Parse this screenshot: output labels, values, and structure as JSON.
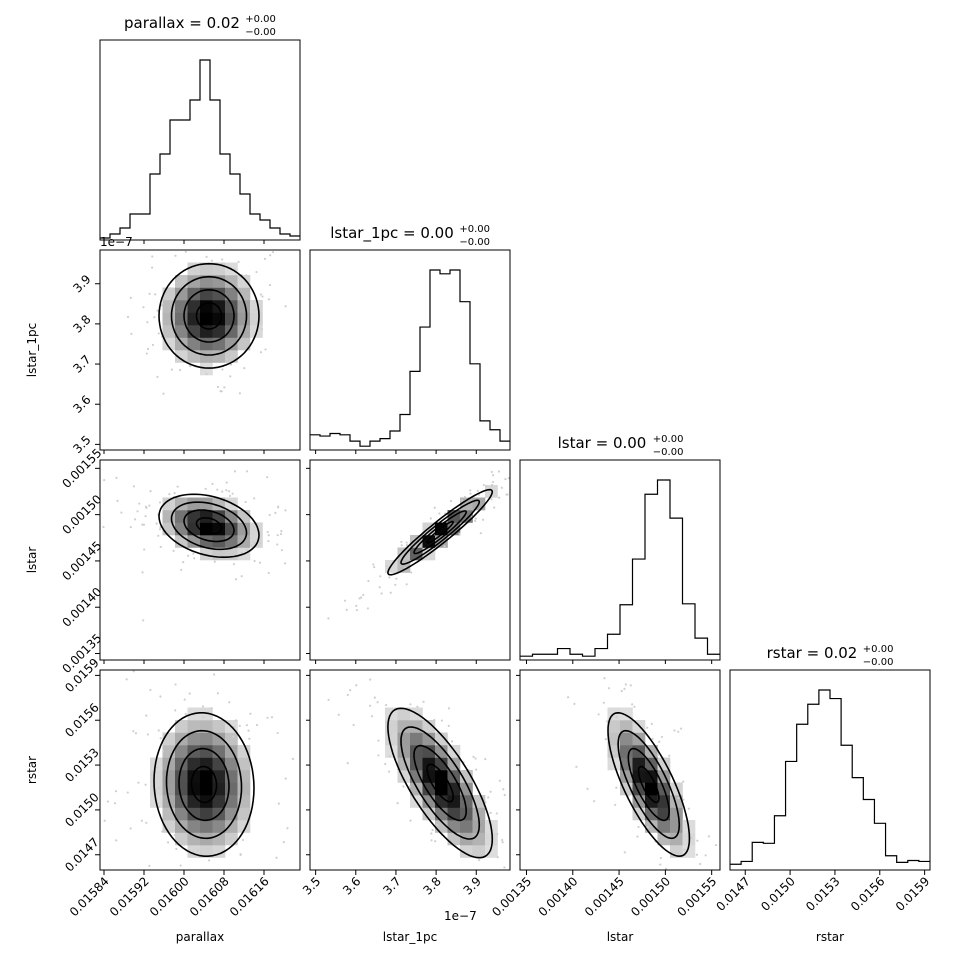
{
  "chart_data": {
    "type": "corner",
    "params": [
      "parallax",
      "lstar_1pc",
      "lstar",
      "rstar"
    ],
    "titles": [
      {
        "text": "parallax = 0.02",
        "sup": "+0.00",
        "sub": "−0.00"
      },
      {
        "text": "lstar_1pc = 0.00",
        "sup": "+0.00",
        "sub": "−0.00"
      },
      {
        "text": "lstar = 0.00",
        "sup": "+0.00",
        "sub": "−0.00"
      },
      {
        "text": "rstar = 0.02",
        "sup": "+0.00",
        "sub": "−0.00"
      }
    ],
    "ranges": [
      [
        0.015832,
        0.016232
      ],
      [
        3.486e-07,
        3.984e-07
      ],
      [
        0.001343,
        0.001559
      ],
      [
        0.014598,
        0.015936
      ]
    ],
    "ticks": {
      "parallax": {
        "values": [
          0.01584,
          0.01592,
          0.016,
          0.01608,
          0.01616
        ],
        "labels": [
          "0.01584",
          "0.01592",
          "0.01600",
          "0.01608",
          "0.01616"
        ]
      },
      "lstar_1pc": {
        "values": [
          3.5e-07,
          3.6e-07,
          3.7e-07,
          3.8e-07,
          3.9e-07
        ],
        "labels": [
          "3.5",
          "3.6",
          "3.7",
          "3.8",
          "3.9"
        ],
        "offset": "1e−7"
      },
      "lstar": {
        "values": [
          0.00135,
          0.0014,
          0.00145,
          0.0015,
          0.00155
        ],
        "labels": [
          "0.00135",
          "0.00140",
          "0.00145",
          "0.00150",
          "0.00155"
        ]
      },
      "rstar": {
        "values": [
          0.0147,
          0.015,
          0.0153,
          0.0156,
          0.0159
        ],
        "labels": [
          "0.0147",
          "0.0150",
          "0.0153",
          "0.0156",
          "0.0159"
        ]
      }
    },
    "histograms": [
      {
        "counts": [
          1,
          3,
          6,
          13,
          13,
          33,
          43,
          60,
          60,
          70,
          90,
          70,
          43,
          33,
          23,
          13,
          10,
          6,
          3,
          2
        ]
      },
      {
        "counts": [
          12,
          11,
          13,
          12,
          7,
          3,
          7,
          9,
          15,
          28,
          62,
          97,
          142,
          139,
          142,
          117,
          68,
          23,
          16,
          7
        ]
      },
      {
        "counts": [
          4,
          6,
          6,
          12,
          6,
          4,
          12,
          27,
          58,
          106,
          174,
          189,
          149,
          59,
          23,
          6
        ]
      },
      {
        "counts": [
          6,
          9,
          29,
          28,
          57,
          114,
          153,
          174,
          189,
          180,
          131,
          97,
          74,
          49,
          15,
          8,
          10,
          9
        ]
      }
    ],
    "pairs": [
      {
        "x": "parallax",
        "y": "lstar_1pc",
        "center": [
          0.01605,
          3.82e-07
        ],
        "sd": [
          5e-05,
          6.5e-09
        ],
        "rho": 0.0
      },
      {
        "x": "parallax",
        "y": "lstar",
        "center": [
          0.01605,
          0.001488
        ],
        "sd": [
          5e-05,
          1.7e-05
        ],
        "rho": -0.3
      },
      {
        "x": "lstar_1pc",
        "y": "lstar",
        "center": [
          3.81e-07,
          0.001481
        ],
        "sd": [
          6.5e-09,
          2.3e-05
        ],
        "rho": 0.95
      },
      {
        "x": "parallax",
        "y": "rstar",
        "center": [
          0.01604,
          0.01517
        ],
        "sd": [
          5e-05,
          0.00024
        ],
        "rho": -0.05
      },
      {
        "x": "lstar_1pc",
        "y": "rstar",
        "center": [
          3.81e-07,
          0.01518
        ],
        "sd": [
          6.5e-09,
          0.00025
        ],
        "rho": -0.75
      },
      {
        "x": "lstar",
        "y": "rstar",
        "center": [
          0.001482,
          0.01517
        ],
        "sd": [
          2.2e-05,
          0.00024
        ],
        "rho": -0.75
      }
    ],
    "grid": false,
    "legend": "none"
  }
}
